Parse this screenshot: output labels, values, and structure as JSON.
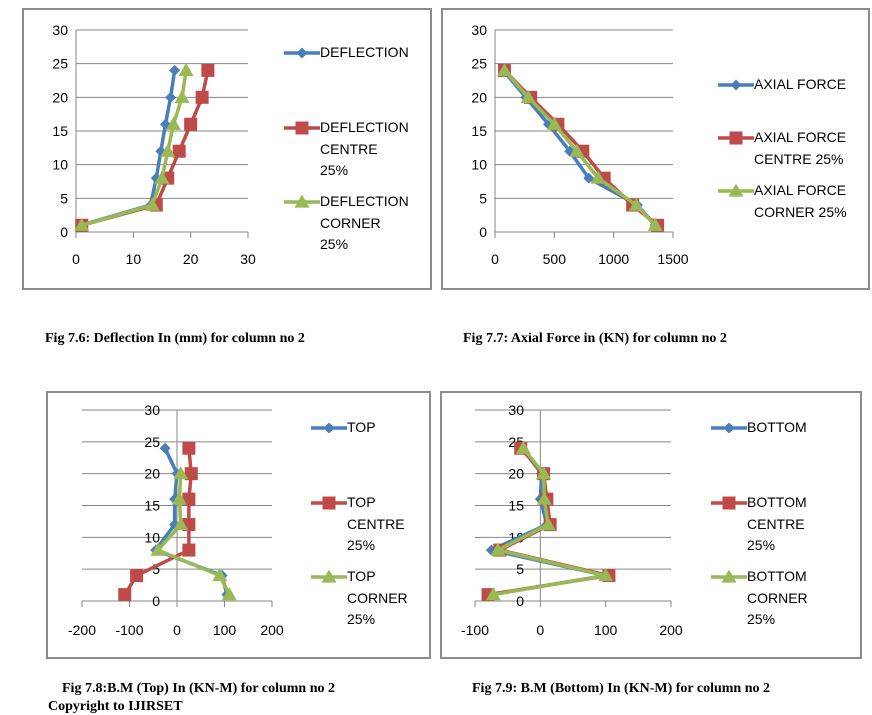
{
  "colors": {
    "series1": "#4a7ebb",
    "series2": "#be4b48",
    "series3": "#98b954",
    "grid": "#868686",
    "frame": "#8c8c8c"
  },
  "chart_data": [
    {
      "type": "line",
      "title": "Fig 7.6: Deflection In (mm) for column no 2",
      "xlim": [
        0,
        30
      ],
      "ylim": [
        0,
        30
      ],
      "xticks": [
        "0",
        "10",
        "20",
        "30"
      ],
      "yticks": [
        "0",
        "5",
        "10",
        "15",
        "20",
        "25",
        "30"
      ],
      "grid": true,
      "legend": "right",
      "series": [
        {
          "name": "DEFLECTION",
          "legend_lines": [
            "DEFLECTION"
          ],
          "marker": "diamond",
          "x": [
            0.8,
            13,
            14,
            14.8,
            15.6,
            16.5,
            17.2
          ],
          "y": [
            1,
            4,
            8,
            12,
            16,
            20,
            24
          ]
        },
        {
          "name": "DEFLECTION CENTRE 25%",
          "legend_lines": [
            "DEFLECTION",
            "CENTRE",
            "25%"
          ],
          "marker": "square",
          "x": [
            1,
            14,
            16,
            18,
            20,
            22,
            23
          ],
          "y": [
            1,
            4,
            8,
            12,
            16,
            20,
            24
          ]
        },
        {
          "name": "DEFLECTION CORNER 25%",
          "legend_lines": [
            "DEFLECTION",
            "CORNER",
            "25%"
          ],
          "marker": "triangle",
          "x": [
            1,
            13.3,
            15,
            16,
            17,
            18.5,
            19.2
          ],
          "y": [
            1,
            4,
            8,
            12,
            16,
            20,
            24
          ]
        }
      ]
    },
    {
      "type": "line",
      "title": "Fig 7.7: Axial Force in (KN) for column no 2",
      "xlim": [
        0,
        1500
      ],
      "ylim": [
        0,
        30
      ],
      "xticks": [
        "0",
        "500",
        "1000",
        "1500"
      ],
      "yticks": [
        "0",
        "5",
        "10",
        "15",
        "20",
        "25",
        "30"
      ],
      "grid": true,
      "legend": "right",
      "series": [
        {
          "name": "AXIAL FORCE",
          "legend_lines": [
            "AXIAL FORCE"
          ],
          "marker": "diamond",
          "x": [
            1350,
            1200,
            790,
            630,
            450,
            260,
            70
          ],
          "y": [
            1,
            4,
            8,
            12,
            16,
            20,
            24
          ]
        },
        {
          "name": "AXIAL FORCE CENTRE 25%",
          "legend_lines": [
            "AXIAL FORCE",
            "CENTRE 25%"
          ],
          "marker": "square",
          "x": [
            1370,
            1160,
            920,
            740,
            530,
            300,
            80
          ],
          "y": [
            1,
            4,
            8,
            12,
            16,
            20,
            24
          ]
        },
        {
          "name": "AXIAL FORCE CORNER 25%",
          "legend_lines": [
            "AXIAL FORCE",
            "CORNER 25%"
          ],
          "marker": "triangle",
          "x": [
            1350,
            1190,
            870,
            690,
            500,
            280,
            80
          ],
          "y": [
            1,
            4,
            8,
            12,
            16,
            20,
            24
          ]
        }
      ]
    },
    {
      "type": "line",
      "title": "Fig 7.8:B.M (Top) In (KN-M) for column no 2",
      "xlim": [
        -200,
        200
      ],
      "ylim": [
        0,
        30
      ],
      "xticks": [
        "-200",
        "-100",
        "0",
        "100",
        "200"
      ],
      "yticks": [
        "0",
        "5",
        "10",
        "15",
        "20",
        "25",
        "30"
      ],
      "grid": true,
      "legend": "right",
      "series": [
        {
          "name": "TOP",
          "legend_lines": [
            "TOP"
          ],
          "marker": "diamond",
          "x": [
            105,
            95,
            -45,
            -5,
            -5,
            0,
            -25
          ],
          "y": [
            1,
            4,
            8,
            12,
            16,
            20,
            24
          ]
        },
        {
          "name": "TOP CENTRE 25%",
          "legend_lines": [
            "TOP",
            "CENTRE",
            "25%"
          ],
          "marker": "square",
          "x": [
            -110,
            -85,
            25,
            25,
            25,
            30,
            25
          ],
          "y": [
            1,
            4,
            8,
            12,
            16,
            20,
            24
          ]
        },
        {
          "name": "TOP CORNER 25%",
          "legend_lines": [
            "TOP",
            "CORNER",
            "25%"
          ],
          "marker": "triangle",
          "x": [
            110,
            90,
            -40,
            8,
            5,
            8
          ],
          "y": [
            1,
            4,
            8,
            12,
            16,
            20
          ]
        }
      ]
    },
    {
      "type": "line",
      "title": "Fig 7.9: B.M (Bottom) In (KN-M) for column no 2",
      "xlim": [
        -100,
        200
      ],
      "ylim": [
        0,
        30
      ],
      "xticks": [
        "-100",
        "0",
        "100",
        "200"
      ],
      "yticks": [
        "0",
        "5",
        "10",
        "15",
        "20",
        "25",
        "30"
      ],
      "grid": true,
      "legend": "right",
      "series": [
        {
          "name": "BOTTOM",
          "legend_lines": [
            "BOTTOM"
          ],
          "marker": "diamond",
          "x": [
            -75,
            100,
            -75,
            10,
            0,
            2,
            -28
          ],
          "y": [
            1,
            4,
            8,
            12,
            16,
            20,
            24
          ]
        },
        {
          "name": "BOTTOM CENTRE 25%",
          "legend_lines": [
            "BOTTOM",
            "CENTRE",
            "25%"
          ],
          "marker": "square",
          "x": [
            -80,
            105,
            -62,
            15,
            10,
            5,
            -30
          ],
          "y": [
            1,
            4,
            8,
            12,
            16,
            20,
            24
          ]
        },
        {
          "name": "BOTTOM CORNER 25%",
          "legend_lines": [
            "BOTTOM",
            "CORNER",
            "25%"
          ],
          "marker": "triangle",
          "x": [
            -72,
            100,
            -65,
            12,
            6,
            5,
            -26
          ],
          "y": [
            1,
            4,
            8,
            12,
            16,
            20,
            24
          ]
        }
      ]
    }
  ],
  "captions": {
    "fig76": "Fig 7.6: Deflection In (mm) for column no 2",
    "fig77": "Fig 7.7: Axial Force in (KN) for column no 2",
    "fig78": "Fig 7.8:B.M (Top) In (KN-M) for column no 2",
    "fig79": "Fig 7.9: B.M (Bottom) In (KN-M) for column no 2"
  },
  "footer": {
    "copyright": "Copyright to IJIRSET"
  }
}
